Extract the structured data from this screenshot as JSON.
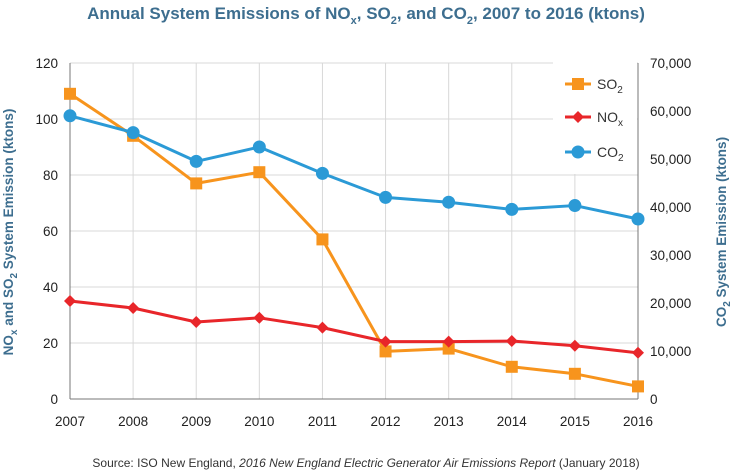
{
  "chart_data": {
    "type": "line",
    "title": {
      "pre": "Annual System Emissions of NO",
      "sub1": "x",
      "mid1": ", SO",
      "sub2": "2",
      "mid2": ", and CO",
      "sub3": "2",
      "post": ", 2007 to 2016 (ktons)"
    },
    "source": {
      "prefix": "Source: ISO New England, ",
      "report": "2016 New England Electric Generator Air Emissions Report",
      "suffix": " (January 2018)"
    },
    "categories": [
      "2007",
      "2008",
      "2009",
      "2010",
      "2011",
      "2012",
      "2013",
      "2014",
      "2015",
      "2016"
    ],
    "y_left": {
      "label": {
        "pre": "NO",
        "sub1": "x",
        "mid": " and SO",
        "sub2": "2",
        "post": " System Emission (ktons)"
      },
      "ylim": [
        0,
        120
      ],
      "ticks": [
        0,
        20,
        40,
        60,
        80,
        100,
        120
      ],
      "tick_labels": [
        "0",
        "20",
        "40",
        "60",
        "80",
        "100",
        "120"
      ]
    },
    "y_right": {
      "label": {
        "pre": "CO",
        "sub": "2",
        "post": " System Emission (ktons)"
      },
      "ylim": [
        0,
        70000
      ],
      "ticks": [
        0,
        10000,
        20000,
        30000,
        40000,
        50000,
        60000,
        70000
      ],
      "tick_labels": [
        "0",
        "10,000",
        "20,000",
        "30,000",
        "40,000",
        "50,000",
        "60,000",
        "70,000"
      ]
    },
    "grid": true,
    "legend_position": "top-right",
    "series": [
      {
        "name": "SO2",
        "label_main": "SO",
        "label_sub": "2",
        "axis": "left",
        "color": "#f7941d",
        "marker": "square",
        "values": [
          109,
          94,
          77,
          81,
          57,
          17,
          18,
          11.5,
          9,
          4.5
        ]
      },
      {
        "name": "NOx",
        "label_main": "NO",
        "label_sub": "x",
        "axis": "left",
        "color": "#e8262a",
        "marker": "diamond",
        "values": [
          35,
          32.5,
          27.5,
          29,
          25.5,
          20.5,
          20.5,
          20.7,
          19,
          16.5
        ]
      },
      {
        "name": "CO2",
        "label_main": "CO",
        "label_sub": "2",
        "axis": "right",
        "color": "#2b9ad6",
        "marker": "circle",
        "values": [
          59000,
          55500,
          49500,
          52500,
          47000,
          42000,
          41000,
          39500,
          40300,
          37500
        ]
      }
    ]
  }
}
